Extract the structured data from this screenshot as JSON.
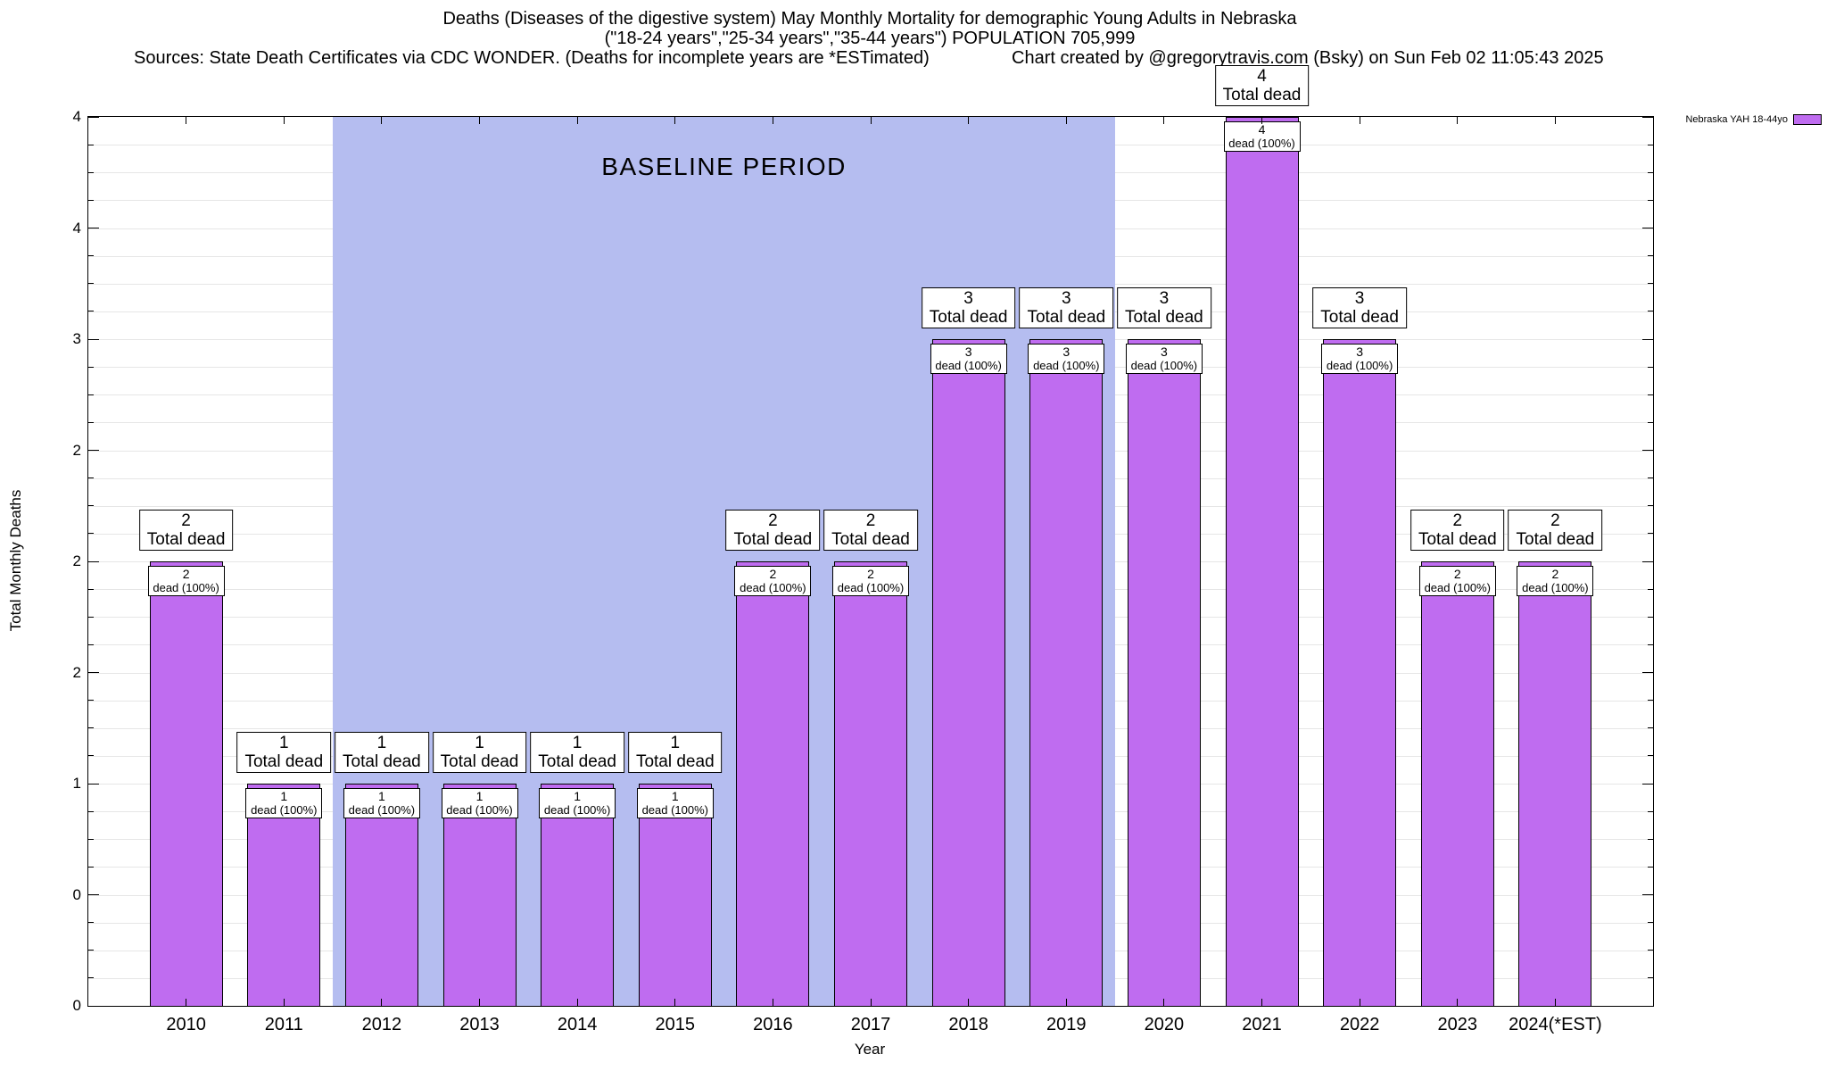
{
  "header": {
    "title_line1": "Deaths (Diseases of the digestive system) May Monthly Mortality for demographic Young Adults in Nebraska",
    "title_line2": "(\"18-24 years\",\"25-34 years\",\"35-44 years\") POPULATION 705,999",
    "sources": "Sources: State Death Certificates via CDC WONDER. (Deaths for incomplete years are *ESTimated)",
    "credit": "Chart created by @gregorytravis.com (Bsky) on Sun Feb 02 11:05:43 2025"
  },
  "legend": {
    "label": "Nebraska YAH 18-44yo",
    "color": "#bf6cf0"
  },
  "chart_data": {
    "type": "bar",
    "title": "Deaths (Diseases of the digestive system) May Monthly Mortality for demographic Young Adults in Nebraska",
    "subtitle": "(\"18-24 years\",\"25-34 years\",\"35-44 years\") POPULATION 705,999",
    "xlabel": "Year",
    "ylabel": "Total Monthly Deaths",
    "ylim": [
      0,
      4
    ],
    "grid": true,
    "minor_grid_step": 0.125,
    "categories": [
      "2010",
      "2011",
      "2012",
      "2013",
      "2014",
      "2015",
      "2016",
      "2017",
      "2018",
      "2019",
      "2020",
      "2021",
      "2022",
      "2023",
      "2024(*EST)"
    ],
    "values": [
      2,
      1,
      1,
      1,
      1,
      1,
      2,
      2,
      3,
      3,
      3,
      4,
      3,
      2,
      2
    ],
    "series_name": "Nebraska YAH 18-44yo",
    "bar_color": "#bf6cf0",
    "bar_border_color": "#000000",
    "y_ticks": [
      {
        "value": 0,
        "label": "0"
      },
      {
        "value": 0.5,
        "label": "0"
      },
      {
        "value": 1,
        "label": "1"
      },
      {
        "value": 1.5,
        "label": "2"
      },
      {
        "value": 2,
        "label": "2"
      },
      {
        "value": 2.5,
        "label": "2"
      },
      {
        "value": 3,
        "label": "3"
      },
      {
        "value": 3.5,
        "label": "4"
      },
      {
        "value": 4,
        "label": "4"
      }
    ],
    "baseline_region": {
      "label": "BASELINE PERIOD",
      "start_category": "2012",
      "end_category": "2019",
      "color": "#b5bdf0"
    },
    "bar_top_label_suffix": "Total dead",
    "bar_inner_label_suffix": "dead (100%)"
  }
}
